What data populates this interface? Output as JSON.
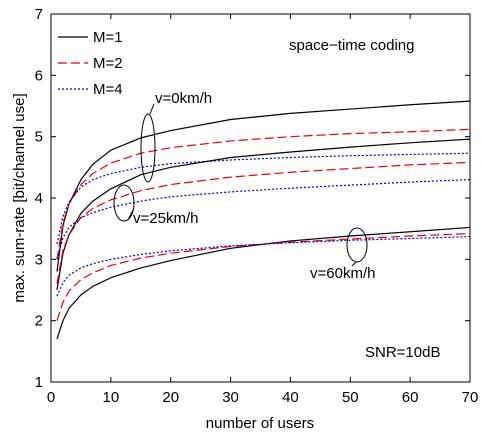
{
  "chart_data": {
    "type": "line",
    "xlabel": "number of users",
    "ylabel": "max. sum-rate  [bit/channel use]",
    "xlim": [
      0,
      70
    ],
    "ylim": [
      1,
      7
    ],
    "xticks": [
      0,
      10,
      20,
      30,
      40,
      50,
      60,
      70
    ],
    "yticks": [
      1,
      2,
      3,
      4,
      5,
      6,
      7
    ],
    "grid": false,
    "legend_position": "top-left",
    "legend": [
      {
        "label": "M=1",
        "color": "#000000",
        "dash": "solid"
      },
      {
        "label": "M=2",
        "color": "#e8000b",
        "dash": "dashed"
      },
      {
        "label": "M=4",
        "color": "#0000cc",
        "dash": "dotted"
      }
    ],
    "annotations": {
      "coding": "space−time coding",
      "snr": "SNR=10dB",
      "v0": "v=0km/h",
      "v25": "v=25km/h",
      "v60": "v=60km/h"
    },
    "series": [
      {
        "group": "v=0km/h",
        "m": "M=1",
        "x": [
          1,
          2,
          3,
          5,
          7,
          10,
          15,
          20,
          30,
          40,
          50,
          60,
          70
        ],
        "y": [
          2.8,
          3.55,
          3.9,
          4.3,
          4.55,
          4.78,
          4.98,
          5.1,
          5.28,
          5.38,
          5.45,
          5.52,
          5.58
        ]
      },
      {
        "group": "v=0km/h",
        "m": "M=2",
        "x": [
          1,
          2,
          3,
          5,
          7,
          10,
          15,
          20,
          30,
          40,
          50,
          60,
          70
        ],
        "y": [
          3.0,
          3.6,
          3.9,
          4.22,
          4.4,
          4.57,
          4.73,
          4.82,
          4.93,
          5.0,
          5.05,
          5.08,
          5.12
        ]
      },
      {
        "group": "v=0km/h",
        "m": "M=4",
        "x": [
          1,
          2,
          3,
          5,
          7,
          10,
          15,
          20,
          30,
          40,
          50,
          60,
          70
        ],
        "y": [
          3.25,
          3.7,
          3.93,
          4.18,
          4.3,
          4.4,
          4.5,
          4.56,
          4.62,
          4.66,
          4.69,
          4.71,
          4.73
        ]
      },
      {
        "group": "v=25km/h",
        "m": "M=1",
        "x": [
          1,
          2,
          3,
          5,
          7,
          10,
          15,
          20,
          30,
          40,
          50,
          60,
          70
        ],
        "y": [
          2.5,
          3.1,
          3.4,
          3.75,
          3.95,
          4.15,
          4.38,
          4.5,
          4.66,
          4.75,
          4.83,
          4.9,
          4.96
        ]
      },
      {
        "group": "v=25km/h",
        "m": "M=2",
        "x": [
          1,
          2,
          3,
          5,
          7,
          10,
          15,
          20,
          30,
          40,
          50,
          60,
          70
        ],
        "y": [
          2.6,
          3.15,
          3.4,
          3.68,
          3.83,
          3.97,
          4.12,
          4.22,
          4.34,
          4.42,
          4.48,
          4.54,
          4.58
        ]
      },
      {
        "group": "v=25km/h",
        "m": "M=4",
        "x": [
          1,
          2,
          3,
          5,
          7,
          10,
          15,
          20,
          30,
          40,
          50,
          60,
          70
        ],
        "y": [
          3.0,
          3.35,
          3.52,
          3.68,
          3.76,
          3.85,
          3.95,
          4.02,
          4.1,
          4.16,
          4.21,
          4.26,
          4.3
        ]
      },
      {
        "group": "v=60km/h",
        "m": "M=1",
        "x": [
          1,
          2,
          3,
          5,
          7,
          10,
          15,
          20,
          30,
          40,
          50,
          60,
          70
        ],
        "y": [
          1.7,
          2.0,
          2.2,
          2.42,
          2.56,
          2.7,
          2.86,
          2.98,
          3.18,
          3.3,
          3.38,
          3.45,
          3.52
        ]
      },
      {
        "group": "v=60km/h",
        "m": "M=2",
        "x": [
          1,
          2,
          3,
          5,
          7,
          10,
          15,
          20,
          30,
          40,
          50,
          60,
          70
        ],
        "y": [
          2.0,
          2.3,
          2.48,
          2.67,
          2.78,
          2.9,
          3.02,
          3.1,
          3.21,
          3.28,
          3.33,
          3.38,
          3.42
        ]
      },
      {
        "group": "v=60km/h",
        "m": "M=4",
        "x": [
          1,
          2,
          3,
          5,
          7,
          10,
          15,
          20,
          30,
          40,
          50,
          60,
          70
        ],
        "y": [
          2.4,
          2.62,
          2.74,
          2.86,
          2.93,
          3.0,
          3.08,
          3.14,
          3.22,
          3.27,
          3.31,
          3.34,
          3.37
        ]
      }
    ]
  }
}
